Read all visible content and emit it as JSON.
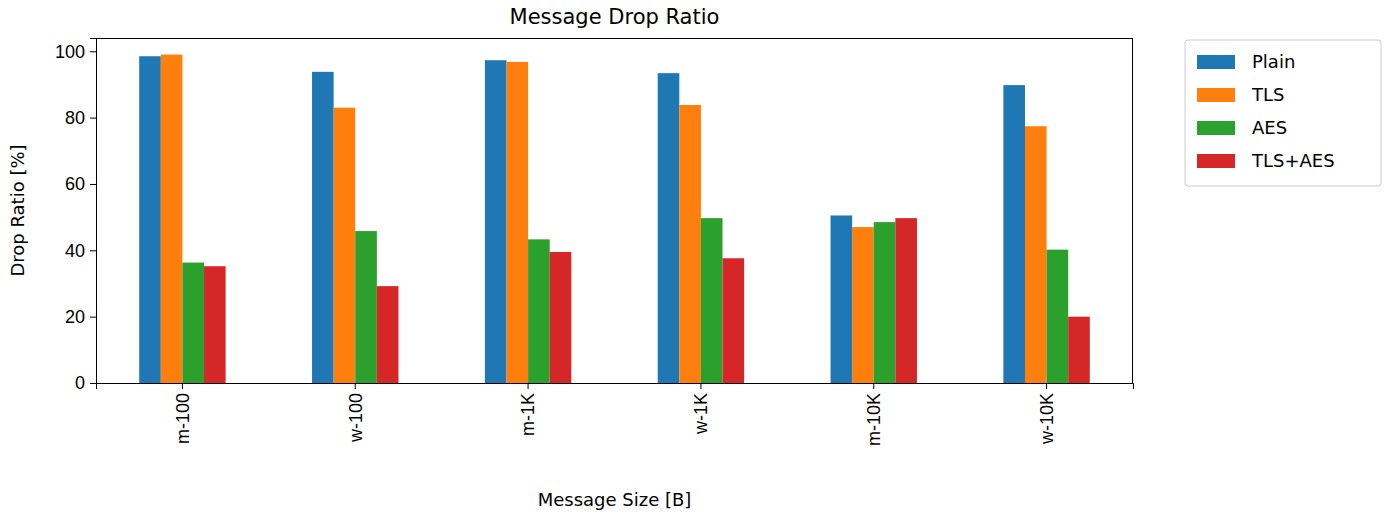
{
  "chart_data": {
    "type": "bar",
    "title": "Message Drop Ratio",
    "x_label": "Message Size [B]",
    "y_label": "Drop Ratio [%]",
    "categories": [
      "m-100",
      "w-100",
      "m-1K",
      "w-1K",
      "m-10K",
      "w-10K"
    ],
    "series": [
      {
        "name": "Plain",
        "color": "#1f77b4",
        "values": [
          98.5,
          93.8,
          97.3,
          93.4,
          50.5,
          89.8
        ]
      },
      {
        "name": "TLS",
        "color": "#ff7f0e",
        "values": [
          99.0,
          83.0,
          96.8,
          83.8,
          47.0,
          77.4
        ]
      },
      {
        "name": "AES",
        "color": "#2ca02c",
        "values": [
          36.3,
          45.8,
          43.3,
          49.7,
          48.5,
          40.2
        ]
      },
      {
        "name": "TLS+AES",
        "color": "#d62728",
        "values": [
          35.2,
          29.2,
          39.5,
          37.6,
          49.7,
          20.0
        ]
      }
    ],
    "ylim": [
      0,
      104
    ],
    "yticks": [
      0,
      20,
      40,
      60,
      80,
      100
    ],
    "grid": false,
    "legend": "right"
  }
}
